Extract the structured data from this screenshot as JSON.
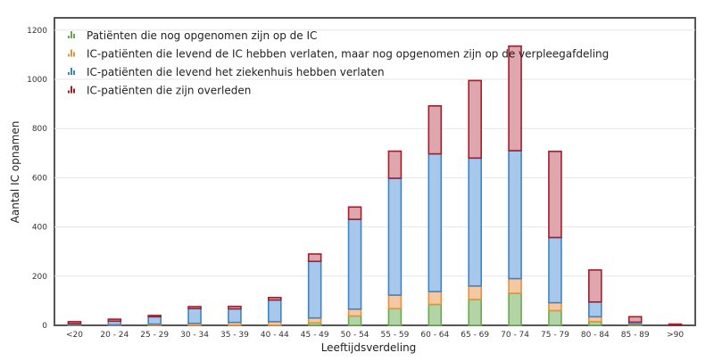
{
  "chart_data": {
    "type": "bar",
    "stacked": true,
    "xlabel": "Leeftijdsverdeling",
    "ylabel": "Aantal IC opnamen",
    "ylim": [
      0,
      1250
    ],
    "yticks": [
      0,
      200,
      400,
      600,
      800,
      1000,
      1200
    ],
    "grid": true,
    "legend_position": "top-left",
    "categories": [
      "<20",
      "20 - 24",
      "25 - 29",
      "30 - 34",
      "35 - 39",
      "40 - 44",
      "45 - 49",
      "50 - 54",
      "55 - 59",
      "60 - 64",
      "65 - 69",
      "70 - 74",
      "75 - 79",
      "80 - 84",
      "85 - 89",
      ">90"
    ],
    "series": [
      {
        "name": "Patiënten die nog opgenomen zijn op de IC",
        "fill": "#b3d4a6",
        "stroke": "#6aa84f",
        "values": [
          0,
          0,
          0,
          0,
          0,
          0,
          10,
          38,
          68,
          85,
          105,
          130,
          60,
          15,
          2,
          0
        ]
      },
      {
        "name": "IC-patiënten die levend de IC hebben verlaten, maar nog opgenomen zijn op de verpleegafdeling",
        "fill": "#f4c8a2",
        "stroke": "#e69138",
        "values": [
          2,
          2,
          5,
          8,
          12,
          15,
          20,
          28,
          55,
          52,
          55,
          60,
          32,
          20,
          3,
          0
        ]
      },
      {
        "name": "IC-patiënten die levend het ziekenhuis hebben verlaten",
        "fill": "#a7c8ea",
        "stroke": "#3d85c6",
        "values": [
          5,
          15,
          30,
          60,
          55,
          88,
          230,
          365,
          475,
          560,
          520,
          520,
          265,
          60,
          8,
          0
        ]
      },
      {
        "name": "IC-patiënten die zijn overleden",
        "fill": "#dea6ad",
        "stroke": "#a61c28",
        "values": [
          8,
          8,
          5,
          8,
          10,
          10,
          30,
          50,
          110,
          195,
          315,
          425,
          350,
          130,
          22,
          5
        ]
      }
    ]
  }
}
